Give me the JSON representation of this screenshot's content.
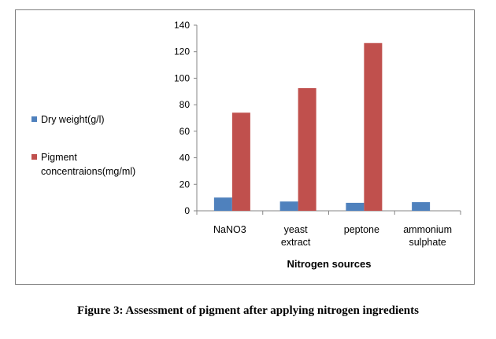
{
  "chart_data": {
    "type": "bar",
    "categories": [
      [
        "NaNO3"
      ],
      [
        "yeast",
        "extract"
      ],
      [
        "peptone"
      ],
      [
        "ammonium",
        "sulphate"
      ]
    ],
    "series": [
      {
        "name": "Dry weight(g/l)",
        "values": [
          10,
          7,
          6,
          6.5
        ],
        "color": "#4f81bd"
      },
      {
        "name": "Pigment concentraions(mg/ml)",
        "values": [
          74,
          92.5,
          126.5,
          0
        ],
        "color": "#c0504d"
      }
    ],
    "legend_lines": [
      [
        "Dry weight(g/l)"
      ],
      [
        "Pigment",
        "concentraions(mg/ml)"
      ]
    ],
    "xlabel": "Nitrogen sources",
    "ylabel": "",
    "ylim": [
      0,
      140
    ],
    "yticks": [
      0,
      20,
      40,
      60,
      80,
      100,
      120,
      140
    ],
    "legend_position": "left",
    "grid": false
  },
  "caption": "Figure 3: Assessment of pigment after applying nitrogen ingredients"
}
